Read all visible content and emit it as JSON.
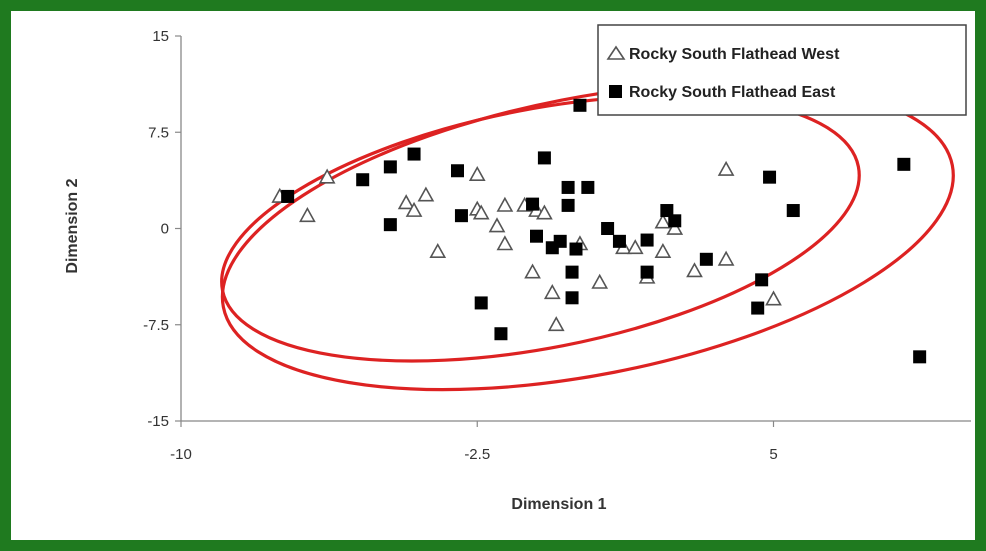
{
  "chart_data": {
    "type": "scatter",
    "xlabel": "Dimension 1",
    "ylabel": "Dimension 2",
    "xlim": [
      -10,
      10
    ],
    "ylim": [
      -15,
      15
    ],
    "xticks": [
      -10,
      -2.5,
      5
    ],
    "yticks": [
      15,
      7.5,
      0,
      -7.5,
      -15
    ],
    "x_tick_labels": [
      "-10",
      "-2.5",
      "5"
    ],
    "y_tick_labels": [
      "15",
      "7.5",
      "0",
      "-7.5",
      "-15"
    ],
    "grid": false,
    "legend_placement": "top-right",
    "series": [
      {
        "name": "Rocky South Flathead West",
        "marker": "triangle-open",
        "color": "#555555",
        "points": [
          [
            -7.5,
            2.5
          ],
          [
            -6.8,
            1.0
          ],
          [
            -6.3,
            4.0
          ],
          [
            -4.3,
            2.0
          ],
          [
            -4.1,
            1.4
          ],
          [
            -3.8,
            2.6
          ],
          [
            -3.5,
            -1.8
          ],
          [
            -2.5,
            4.2
          ],
          [
            -2.5,
            1.5
          ],
          [
            -2.4,
            1.2
          ],
          [
            -2.0,
            0.2
          ],
          [
            -1.8,
            1.8
          ],
          [
            -1.8,
            -1.2
          ],
          [
            -1.3,
            1.8
          ],
          [
            -1.1,
            -3.4
          ],
          [
            -1.0,
            1.4
          ],
          [
            -0.8,
            1.2
          ],
          [
            -0.6,
            -5.0
          ],
          [
            -0.5,
            -7.5
          ],
          [
            0.1,
            -1.2
          ],
          [
            0.6,
            -4.2
          ],
          [
            1.2,
            -1.5
          ],
          [
            1.5,
            -1.5
          ],
          [
            1.8,
            -3.8
          ],
          [
            2.2,
            0.5
          ],
          [
            2.2,
            -1.8
          ],
          [
            2.5,
            0.0
          ],
          [
            3.0,
            -3.3
          ],
          [
            3.8,
            -2.4
          ],
          [
            3.8,
            4.6
          ],
          [
            5.0,
            -5.5
          ]
        ]
      },
      {
        "name": "Rocky South Flathead East",
        "marker": "square-filled",
        "color": "#000000",
        "points": [
          [
            -7.3,
            2.5
          ],
          [
            -5.4,
            3.8
          ],
          [
            -4.7,
            0.3
          ],
          [
            -4.7,
            4.8
          ],
          [
            -4.1,
            5.8
          ],
          [
            -3.0,
            4.5
          ],
          [
            -2.9,
            1.0
          ],
          [
            -2.4,
            -5.8
          ],
          [
            -1.9,
            -8.2
          ],
          [
            -1.1,
            1.9
          ],
          [
            -1.0,
            -0.6
          ],
          [
            -0.8,
            5.5
          ],
          [
            -0.6,
            -1.5
          ],
          [
            -0.4,
            -1.0
          ],
          [
            -0.2,
            1.8
          ],
          [
            -0.2,
            3.2
          ],
          [
            -0.1,
            -3.4
          ],
          [
            -0.1,
            -5.4
          ],
          [
            0.0,
            -1.6
          ],
          [
            0.1,
            9.6
          ],
          [
            0.3,
            3.2
          ],
          [
            0.8,
            0.0
          ],
          [
            1.1,
            -1.0
          ],
          [
            1.8,
            -0.9
          ],
          [
            1.8,
            -3.4
          ],
          [
            2.3,
            1.4
          ],
          [
            2.5,
            0.6
          ],
          [
            3.3,
            -2.4
          ],
          [
            4.6,
            -6.2
          ],
          [
            4.7,
            -4.0
          ],
          [
            4.9,
            4.0
          ],
          [
            5.5,
            1.4
          ],
          [
            8.3,
            5.0
          ],
          [
            8.7,
            -10.0
          ]
        ]
      }
    ],
    "ellipses": [
      {
        "series": "Rocky South Flathead West",
        "color": "#dd2222",
        "cx": -0.9,
        "cy": 0.0,
        "rx": 8.2,
        "ry": 9.3,
        "angle": -11
      },
      {
        "series": "Rocky South Flathead East",
        "color": "#dd2222",
        "cx": 0.3,
        "cy": -0.6,
        "rx": 9.4,
        "ry": 10.8,
        "angle": -11
      }
    ]
  }
}
